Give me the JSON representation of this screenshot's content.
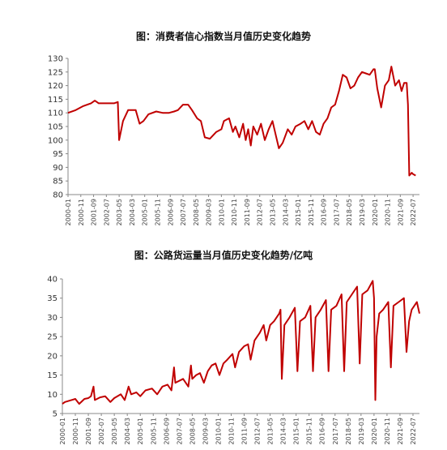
{
  "chart_data": [
    {
      "type": "line",
      "title": "图：消费者信心指数当月值历史变化趋势",
      "ylim": [
        80,
        130
      ],
      "yticks": [
        80,
        85,
        90,
        95,
        100,
        105,
        110,
        115,
        120,
        125,
        130
      ],
      "xticks": [
        "2000-01",
        "2000-11",
        "2001-09",
        "2002-07",
        "2003-05",
        "2004-03",
        "2005-01",
        "2005-11",
        "2006-09",
        "2007-07",
        "2008-05",
        "2009-03",
        "2010-01",
        "2010-11",
        "2011-09",
        "2012-07",
        "2013-05",
        "2014-03",
        "2015-01",
        "2015-11",
        "2016-09",
        "2017-07",
        "2018-05",
        "2019-03",
        "2020-01",
        "2020-11",
        "2021-09",
        "2022-07"
      ],
      "grid": false,
      "color": "#c00000",
      "series": [
        {
          "points": [
            [
              "2000-01",
              110
            ],
            [
              "2000-07",
              111
            ],
            [
              "2001-01",
              112.5
            ],
            [
              "2001-07",
              113.5
            ],
            [
              "2001-10",
              114.5
            ],
            [
              "2002-01",
              113.5
            ],
            [
              "2002-07",
              113.5
            ],
            [
              "2003-01",
              113.5
            ],
            [
              "2003-04",
              114
            ],
            [
              "2003-05",
              100
            ],
            [
              "2003-08",
              107
            ],
            [
              "2003-12",
              111
            ],
            [
              "2004-06",
              111
            ],
            [
              "2004-09",
              106
            ],
            [
              "2004-12",
              107
            ],
            [
              "2005-04",
              109.5
            ],
            [
              "2005-10",
              110.5
            ],
            [
              "2006-03",
              110
            ],
            [
              "2006-08",
              110
            ],
            [
              "2006-12",
              110.5
            ],
            [
              "2007-03",
              111
            ],
            [
              "2007-07",
              113
            ],
            [
              "2007-11",
              113
            ],
            [
              "2008-02",
              111
            ],
            [
              "2008-06",
              108
            ],
            [
              "2008-09",
              107
            ],
            [
              "2008-12",
              101
            ],
            [
              "2009-04",
              100.5
            ],
            [
              "2009-09",
              103
            ],
            [
              "2010-01",
              104
            ],
            [
              "2010-03",
              107
            ],
            [
              "2010-07",
              108
            ],
            [
              "2010-10",
              103
            ],
            [
              "2010-12",
              105
            ],
            [
              "2011-03",
              101
            ],
            [
              "2011-06",
              106
            ],
            [
              "2011-08",
              100
            ],
            [
              "2011-10",
              104
            ],
            [
              "2011-12",
              98
            ],
            [
              "2012-02",
              105
            ],
            [
              "2012-05",
              102
            ],
            [
              "2012-08",
              106
            ],
            [
              "2012-11",
              100
            ],
            [
              "2013-02",
              104
            ],
            [
              "2013-05",
              107
            ],
            [
              "2013-08",
              101
            ],
            [
              "2013-10",
              97
            ],
            [
              "2014-01",
              99
            ],
            [
              "2014-05",
              104
            ],
            [
              "2014-08",
              102
            ],
            [
              "2014-11",
              105
            ],
            [
              "2015-03",
              106
            ],
            [
              "2015-06",
              107
            ],
            [
              "2015-09",
              104
            ],
            [
              "2015-12",
              107
            ],
            [
              "2016-03",
              103
            ],
            [
              "2016-06",
              102
            ],
            [
              "2016-09",
              106
            ],
            [
              "2016-12",
              108
            ],
            [
              "2017-03",
              112
            ],
            [
              "2017-06",
              113
            ],
            [
              "2017-09",
              118
            ],
            [
              "2017-12",
              124
            ],
            [
              "2018-03",
              123
            ],
            [
              "2018-06",
              119
            ],
            [
              "2018-09",
              120
            ],
            [
              "2018-12",
              123
            ],
            [
              "2019-03",
              125
            ],
            [
              "2019-06",
              124.5
            ],
            [
              "2019-09",
              124
            ],
            [
              "2019-12",
              126
            ],
            [
              "2020-01",
              126
            ],
            [
              "2020-03",
              119
            ],
            [
              "2020-06",
              112
            ],
            [
              "2020-09",
              120
            ],
            [
              "2020-12",
              122
            ],
            [
              "2021-02",
              127
            ],
            [
              "2021-05",
              120
            ],
            [
              "2021-08",
              122
            ],
            [
              "2021-10",
              118
            ],
            [
              "2021-12",
              121
            ],
            [
              "2022-02",
              121
            ],
            [
              "2022-03",
              113
            ],
            [
              "2022-04",
              87
            ],
            [
              "2022-06",
              88
            ],
            [
              "2022-07",
              87.5
            ],
            [
              "2022-09",
              87
            ]
          ]
        }
      ]
    },
    {
      "type": "line",
      "title": "图：公路货运量当月值历史变化趋势/亿吨",
      "ylim": [
        5,
        40
      ],
      "yticks": [
        5,
        10,
        15,
        20,
        25,
        30,
        35,
        40
      ],
      "xticks": [
        "2000-01",
        "2000-11",
        "2001-09",
        "2002-07",
        "2003-05",
        "2004-03",
        "2005-01",
        "2005-11",
        "2006-09",
        "2007-07",
        "2008-05",
        "2009-03",
        "2010-01",
        "2010-11",
        "2011-09",
        "2012-07",
        "2013-05",
        "2014-03",
        "2015-01",
        "2015-11",
        "2016-09",
        "2017-07",
        "2018-05",
        "2019-03",
        "2020-01",
        "2020-11",
        "2021-09",
        "2022-07"
      ],
      "grid": false,
      "color": "#c00000",
      "series": [
        {
          "points": [
            [
              "2000-01",
              7.5
            ],
            [
              "2000-03",
              8
            ],
            [
              "2000-08",
              8.5
            ],
            [
              "2000-11",
              8.8
            ],
            [
              "2001-02",
              7.5
            ],
            [
              "2001-06",
              8.8
            ],
            [
              "2001-09",
              9
            ],
            [
              "2001-11",
              9.5
            ],
            [
              "2002-01",
              12
            ],
            [
              "2002-02",
              8.5
            ],
            [
              "2002-06",
              9.2
            ],
            [
              "2002-10",
              9.5
            ],
            [
              "2003-02",
              8
            ],
            [
              "2003-05",
              9
            ],
            [
              "2003-10",
              10
            ],
            [
              "2004-01",
              8.5
            ],
            [
              "2004-04",
              12
            ],
            [
              "2004-06",
              10
            ],
            [
              "2004-10",
              10.5
            ],
            [
              "2005-01",
              9.5
            ],
            [
              "2005-05",
              11
            ],
            [
              "2005-10",
              11.5
            ],
            [
              "2006-02",
              10
            ],
            [
              "2006-06",
              12
            ],
            [
              "2006-10",
              12.5
            ],
            [
              "2007-01",
              11
            ],
            [
              "2007-03",
              17
            ],
            [
              "2007-04",
              13
            ],
            [
              "2007-07",
              13.5
            ],
            [
              "2007-10",
              14
            ],
            [
              "2008-02",
              12
            ],
            [
              "2008-04",
              17.5
            ],
            [
              "2008-05",
              14
            ],
            [
              "2008-08",
              15
            ],
            [
              "2008-11",
              15.5
            ],
            [
              "2009-02",
              13
            ],
            [
              "2009-05",
              16
            ],
            [
              "2009-08",
              17.5
            ],
            [
              "2009-11",
              18
            ],
            [
              "2010-02",
              15
            ],
            [
              "2010-05",
              18
            ],
            [
              "2010-08",
              19
            ],
            [
              "2010-12",
              20.5
            ],
            [
              "2011-02",
              17
            ],
            [
              "2011-05",
              21
            ],
            [
              "2011-09",
              22.5
            ],
            [
              "2011-12",
              23
            ],
            [
              "2012-02",
              19
            ],
            [
              "2012-05",
              24
            ],
            [
              "2012-09",
              26
            ],
            [
              "2012-12",
              28
            ],
            [
              "2013-02",
              24
            ],
            [
              "2013-05",
              28
            ],
            [
              "2013-08",
              29
            ],
            [
              "2013-12",
              31
            ],
            [
              "2014-01",
              32
            ],
            [
              "2014-02",
              14
            ],
            [
              "2014-04",
              28
            ],
            [
              "2014-08",
              30
            ],
            [
              "2014-12",
              32.5
            ],
            [
              "2015-02",
              16
            ],
            [
              "2015-04",
              29
            ],
            [
              "2015-08",
              30
            ],
            [
              "2015-12",
              33
            ],
            [
              "2016-02",
              16
            ],
            [
              "2016-04",
              30
            ],
            [
              "2016-08",
              32
            ],
            [
              "2016-12",
              34.5
            ],
            [
              "2017-02",
              16
            ],
            [
              "2017-04",
              32
            ],
            [
              "2017-08",
              33
            ],
            [
              "2017-12",
              36
            ],
            [
              "2018-02",
              16
            ],
            [
              "2018-04",
              34
            ],
            [
              "2018-08",
              36
            ],
            [
              "2018-12",
              38
            ],
            [
              "2019-02",
              18
            ],
            [
              "2019-04",
              36
            ],
            [
              "2019-08",
              37
            ],
            [
              "2019-12",
              39.5
            ],
            [
              "2020-01",
              35
            ],
            [
              "2020-02",
              8.5
            ],
            [
              "2020-03",
              25
            ],
            [
              "2020-05",
              31
            ],
            [
              "2020-08",
              32
            ],
            [
              "2020-12",
              34
            ],
            [
              "2021-02",
              17
            ],
            [
              "2021-04",
              33
            ],
            [
              "2021-08",
              34
            ],
            [
              "2021-12",
              35
            ],
            [
              "2022-02",
              21
            ],
            [
              "2022-04",
              29
            ],
            [
              "2022-06",
              32
            ],
            [
              "2022-08",
              33
            ],
            [
              "2022-10",
              34
            ],
            [
              "2022-12",
              31
            ]
          ]
        }
      ]
    }
  ]
}
